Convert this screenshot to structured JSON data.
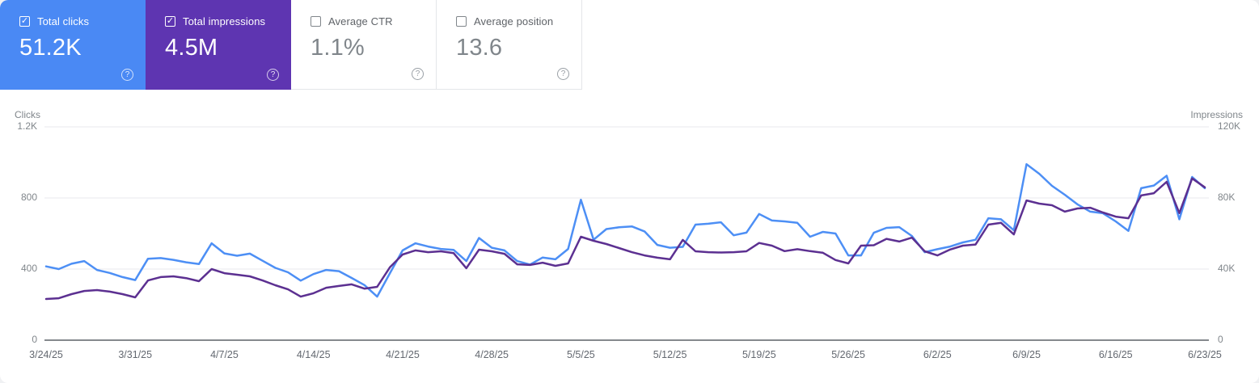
{
  "cards": [
    {
      "label": "Total clicks",
      "value": "51.2K",
      "checked": true,
      "bg": "#4A89F4"
    },
    {
      "label": "Total impressions",
      "value": "4.5M",
      "checked": true,
      "bg": "#5E35B1"
    },
    {
      "label": "Average CTR",
      "value": "1.1%",
      "checked": false,
      "bg": "#ffffff"
    },
    {
      "label": "Average position",
      "value": "13.6",
      "checked": false,
      "bg": "#ffffff"
    }
  ],
  "help_icon_glyph": "?",
  "checkbox_glyph": "✓",
  "chart_data": {
    "type": "line",
    "x_start": "3/24/25",
    "x_end": "6/23/25",
    "x_tick_labels": [
      "3/24/25",
      "3/31/25",
      "4/7/25",
      "4/14/25",
      "4/21/25",
      "4/28/25",
      "5/5/25",
      "5/12/25",
      "5/19/25",
      "5/26/25",
      "6/2/25",
      "6/9/25",
      "6/16/25",
      "6/23/25"
    ],
    "left_axis": {
      "title": "Clicks",
      "ticks": [
        "0",
        "400",
        "800",
        "1.2K"
      ],
      "tick_values": [
        0,
        400,
        800,
        1200
      ],
      "max": 1200
    },
    "right_axis": {
      "title": "Impressions",
      "ticks": [
        "0",
        "40K",
        "80K",
        "120K"
      ],
      "tick_values": [
        0,
        40000,
        80000,
        120000
      ],
      "max": 120000
    },
    "grid": true,
    "legend_position": "none",
    "series": [
      {
        "name": "Clicks",
        "axis": "left",
        "color": "#4D8FF5",
        "values": [
          415,
          400,
          430,
          445,
          395,
          378,
          355,
          338,
          458,
          462,
          452,
          438,
          428,
          545,
          488,
          475,
          487,
          447,
          407,
          382,
          335,
          372,
          395,
          388,
          350,
          310,
          245,
          377,
          505,
          545,
          527,
          513,
          508,
          445,
          575,
          520,
          505,
          445,
          425,
          465,
          455,
          513,
          790,
          565,
          625,
          635,
          640,
          612,
          536,
          520,
          525,
          650,
          655,
          663,
          590,
          605,
          710,
          673,
          668,
          660,
          582,
          609,
          600,
          477,
          477,
          604,
          632,
          636,
          586,
          495,
          512,
          527,
          550,
          565,
          686,
          680,
          618,
          990,
          936,
          868,
          818,
          764,
          723,
          714,
          668,
          615,
          855,
          870,
          925,
          680,
          918,
          855
        ]
      },
      {
        "name": "Impressions",
        "axis": "right",
        "color": "#5C3091",
        "values": [
          23200,
          23600,
          25900,
          27700,
          28200,
          27300,
          25900,
          24100,
          33600,
          35500,
          35900,
          34900,
          33200,
          40000,
          37700,
          36800,
          35900,
          33600,
          30900,
          28600,
          24500,
          26400,
          29500,
          30500,
          31400,
          29000,
          30000,
          41000,
          48200,
          50500,
          49500,
          50000,
          49000,
          40500,
          50900,
          50000,
          48600,
          42700,
          42300,
          43600,
          41800,
          43200,
          58200,
          55900,
          54100,
          51800,
          49500,
          47700,
          46400,
          45500,
          56400,
          50000,
          49500,
          49300,
          49500,
          50000,
          54700,
          53200,
          50100,
          51200,
          50100,
          49200,
          45100,
          43200,
          53200,
          53400,
          57000,
          55500,
          57700,
          50000,
          47700,
          51000,
          53200,
          53800,
          65000,
          66000,
          59500,
          78600,
          76800,
          75900,
          72300,
          74100,
          74500,
          71800,
          69500,
          68600,
          81400,
          82700,
          89100,
          71500,
          91000,
          86000
        ]
      }
    ]
  }
}
